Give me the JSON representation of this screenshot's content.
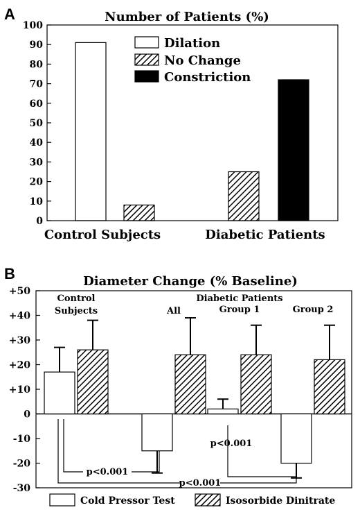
{
  "panel_a_label": "A",
  "panel_b_label": "B",
  "chart_data": [
    {
      "type": "bar",
      "title": "Number of Patients (%)",
      "categories": [
        "Control Subjects",
        "Diabetic Patients"
      ],
      "series": [
        {
          "name": "Dilation",
          "values": [
            91,
            0
          ],
          "pattern": "open"
        },
        {
          "name": "No Change",
          "values": [
            8,
            25
          ],
          "pattern": "hatched"
        },
        {
          "name": "Constriction",
          "values": [
            0,
            72
          ],
          "pattern": "solid"
        }
      ],
      "ylim": [
        0,
        100
      ],
      "yticks": [
        "0",
        "10",
        "20",
        "30",
        "40",
        "50",
        "60",
        "70",
        "80",
        "90",
        "100"
      ],
      "legend": "top-center"
    },
    {
      "type": "bar",
      "title": "Diameter Change (% Baseline)",
      "group_header": "Diabetic Patients",
      "categories": [
        "Control Subjects",
        "All",
        "Group 1",
        "Group 2"
      ],
      "series": [
        {
          "name": "Cold Pressor Test",
          "values": [
            17,
            -15,
            2,
            -20
          ],
          "error": [
            10,
            9,
            4,
            6
          ],
          "pattern": "open"
        },
        {
          "name": "Isosorbide Dinitrate",
          "values": [
            26,
            24,
            24,
            22
          ],
          "error": [
            12,
            15,
            12,
            14
          ],
          "pattern": "hatched"
        }
      ],
      "ylim": [
        -30,
        50
      ],
      "yticks": [
        "-30",
        "-20",
        "-10",
        "0",
        "+10",
        "+20",
        "+30",
        "+40",
        "+50"
      ],
      "annotations": [
        "p<0.001",
        "p<0.001",
        "p<0.001"
      ],
      "legend": "bottom"
    }
  ]
}
